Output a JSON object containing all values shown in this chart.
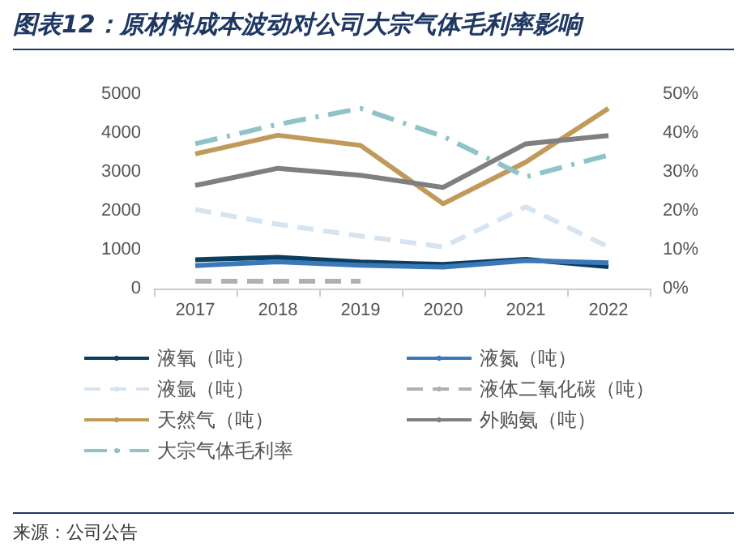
{
  "chart_data": {
    "type": "line",
    "title": "图表12：原材料成本波动对公司大宗气体毛利率影响",
    "annotations": [
      "来源：公司公告"
    ],
    "categories": [
      "2017",
      "2018",
      "2019",
      "2020",
      "2021",
      "2022"
    ],
    "series": [
      {
        "name": "液氧（吨）",
        "color": "#0b3d5e",
        "values": [
          740,
          800,
          680,
          620,
          750,
          560
        ],
        "line_style": "solid"
      },
      {
        "name": "液氮（吨）",
        "color": "#3a78b8",
        "values": [
          590,
          690,
          600,
          550,
          720,
          660
        ],
        "line_style": "solid"
      },
      {
        "name": "液氩（吨）",
        "color": "#d6e4f2",
        "values": [
          2030,
          1650,
          1350,
          1070,
          2100,
          1070
        ],
        "line_style": "dashed"
      },
      {
        "name": "液体二氧化碳（吨）",
        "color": "#b0b0b0",
        "values": [
          190,
          190,
          190,
          null,
          null,
          null
        ],
        "line_style": "dashed"
      },
      {
        "name": "天然气（吨）",
        "color": "#c19a5b",
        "values": [
          3460,
          3940,
          3680,
          2180,
          3250,
          4630
        ],
        "line_style": "solid"
      },
      {
        "name": "外购氨（吨）",
        "color": "#7f7f7f",
        "values": [
          2650,
          3090,
          2910,
          2600,
          3720,
          3930
        ],
        "line_style": "solid"
      },
      {
        "name": "大宗气体毛利率",
        "color": "#8fc3c9",
        "values": [
          37.2,
          42.2,
          46.3,
          39.1,
          28.7,
          34.3
        ],
        "line_style": "dashdot",
        "axis": "y2"
      }
    ],
    "ylim": [
      0,
      5000
    ],
    "yticks": [
      0,
      1000,
      2000,
      3000,
      4000,
      5000
    ],
    "y2lim": [
      0,
      50
    ],
    "y2ticks": [
      {
        "value": 0,
        "label": "0%"
      },
      {
        "value": 10,
        "label": "10%"
      },
      {
        "value": 20,
        "label": "20%"
      },
      {
        "value": 30,
        "label": "30%"
      },
      {
        "value": 40,
        "label": "40%"
      },
      {
        "value": 50,
        "label": "50%"
      }
    ],
    "grid": false,
    "legend": "bottom",
    "marker": "none"
  }
}
